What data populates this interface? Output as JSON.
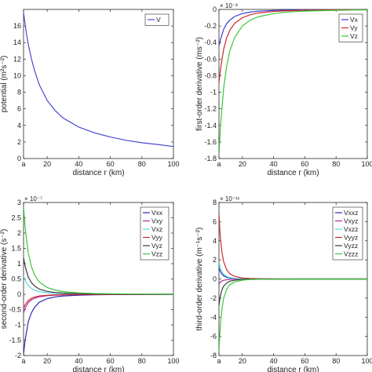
{
  "chart_data": [
    {
      "type": "line",
      "panel": "top-left",
      "title": "",
      "xlabel": "distance r (km)",
      "ylabel": "potential (m²s⁻²)",
      "exponent_label": "",
      "xlim": [
        5,
        100
      ],
      "ylim": [
        0,
        18
      ],
      "xticks": [
        5,
        20,
        40,
        60,
        80,
        100
      ],
      "xtick_labels": [
        "a",
        "20",
        "40",
        "60",
        "80",
        "100"
      ],
      "yticks": [
        0,
        2,
        4,
        6,
        8,
        10,
        12,
        14,
        16
      ],
      "ytick_labels": [
        "0",
        "2",
        "4",
        "6",
        "8",
        "10",
        "12",
        "14",
        "16"
      ],
      "grid": false,
      "legend": "top-right",
      "series": [
        {
          "name": "V",
          "color": "#4a4ad0",
          "x": [
            5,
            6,
            7,
            8,
            10,
            12,
            15,
            20,
            25,
            30,
            40,
            50,
            60,
            70,
            80,
            90,
            100
          ],
          "y": [
            17.6,
            16.2,
            14.9,
            13.8,
            12.0,
            10.6,
            8.9,
            7.0,
            5.8,
            4.9,
            3.8,
            3.1,
            2.6,
            2.2,
            1.9,
            1.7,
            1.45
          ]
        }
      ]
    },
    {
      "type": "line",
      "panel": "top-right",
      "title": "",
      "xlabel": "distance r (km)",
      "ylabel": "first-order derivative (ms⁻²)",
      "exponent_label": "× 10⁻³",
      "xlim": [
        5,
        100
      ],
      "ylim": [
        -1.8,
        0
      ],
      "xticks": [
        5,
        20,
        40,
        60,
        80,
        100
      ],
      "xtick_labels": [
        "a",
        "20",
        "40",
        "60",
        "80",
        "100"
      ],
      "yticks": [
        -1.8,
        -1.6,
        -1.4,
        -1.2,
        -1.0,
        -0.8,
        -0.6,
        -0.4,
        -0.2,
        0
      ],
      "ytick_labels": [
        "-1.8",
        "-1.6",
        "-1.4",
        "-1.2",
        "-1",
        "-0.8",
        "-0.6",
        "-0.4",
        "-0.2",
        "0"
      ],
      "grid": false,
      "legend": "top-right",
      "series": [
        {
          "name": "Vx",
          "color": "#3a3ad0",
          "x": [
            5,
            6,
            8,
            10,
            12,
            15,
            20,
            25,
            30,
            40,
            50,
            60,
            70,
            80,
            90,
            100
          ],
          "y": [
            -0.44,
            -0.36,
            -0.24,
            -0.17,
            -0.13,
            -0.085,
            -0.05,
            -0.032,
            -0.022,
            -0.012,
            -0.008,
            -0.005,
            -0.004,
            -0.003,
            -0.002,
            -0.0015
          ]
        },
        {
          "name": "Vy",
          "color": "#d02a2a",
          "x": [
            5,
            6,
            8,
            10,
            12,
            15,
            20,
            25,
            30,
            40,
            50,
            60,
            70,
            80,
            90,
            100
          ],
          "y": [
            -0.88,
            -0.72,
            -0.48,
            -0.34,
            -0.25,
            -0.17,
            -0.1,
            -0.064,
            -0.044,
            -0.024,
            -0.015,
            -0.01,
            -0.008,
            -0.006,
            -0.004,
            -0.003
          ]
        },
        {
          "name": "Vz",
          "color": "#38c838",
          "x": [
            5,
            6,
            8,
            10,
            12,
            15,
            20,
            25,
            30,
            40,
            50,
            60,
            70,
            80,
            90,
            100
          ],
          "y": [
            -1.75,
            -1.4,
            -0.95,
            -0.68,
            -0.5,
            -0.34,
            -0.2,
            -0.13,
            -0.09,
            -0.05,
            -0.03,
            -0.02,
            -0.015,
            -0.011,
            -0.008,
            -0.006
          ]
        }
      ]
    },
    {
      "type": "line",
      "panel": "bottom-left",
      "title": "",
      "xlabel": "distance r (km)",
      "ylabel": "second-order derivative (s⁻²)",
      "exponent_label": "× 10⁻⁷",
      "xlim": [
        5,
        100
      ],
      "ylim": [
        -2,
        3
      ],
      "xticks": [
        5,
        20,
        40,
        60,
        80,
        100
      ],
      "xtick_labels": [
        "a",
        "20",
        "40",
        "60",
        "80",
        "100"
      ],
      "yticks": [
        -2,
        -1.5,
        -1,
        -0.5,
        0,
        0.5,
        1,
        1.5,
        2,
        2.5,
        3
      ],
      "ytick_labels": [
        "-2",
        "-1.5",
        "-1",
        "-0.5",
        "0",
        "0.5",
        "1",
        "1.5",
        "2",
        "2.5",
        "3"
      ],
      "grid": false,
      "legend": "top-right",
      "series": [
        {
          "name": "Vxx",
          "color": "#2a2ab0",
          "x": [
            5,
            6,
            8,
            10,
            12,
            15,
            20,
            25,
            30,
            40,
            50,
            60,
            80,
            100
          ],
          "y": [
            -1.95,
            -1.5,
            -0.9,
            -0.6,
            -0.42,
            -0.26,
            -0.14,
            -0.085,
            -0.055,
            -0.028,
            -0.016,
            -0.01,
            -0.005,
            -0.003
          ]
        },
        {
          "name": "Vxy",
          "color": "#b02aa8",
          "x": [
            5,
            6,
            8,
            10,
            12,
            15,
            20,
            25,
            30,
            40,
            50,
            60,
            80,
            100
          ],
          "y": [
            -0.6,
            -0.45,
            -0.27,
            -0.18,
            -0.13,
            -0.08,
            -0.045,
            -0.028,
            -0.018,
            -0.009,
            -0.005,
            -0.003,
            -0.002,
            -0.001
          ]
        },
        {
          "name": "Vxz",
          "color": "#5ad8e8",
          "x": [
            5,
            6,
            8,
            10,
            12,
            15,
            20,
            25,
            30,
            40,
            50,
            60,
            80,
            100
          ],
          "y": [
            0.6,
            0.46,
            0.28,
            0.19,
            0.13,
            0.085,
            0.048,
            0.03,
            0.02,
            0.01,
            0.006,
            0.004,
            0.002,
            0.001
          ]
        },
        {
          "name": "Vyy",
          "color": "#d02a2a",
          "x": [
            5,
            6,
            8,
            10,
            12,
            15,
            20,
            25,
            30,
            40,
            50,
            60,
            80,
            100
          ],
          "y": [
            -0.45,
            -0.34,
            -0.2,
            -0.13,
            -0.09,
            -0.055,
            -0.03,
            -0.018,
            -0.012,
            -0.006,
            -0.003,
            -0.002,
            -0.001,
            -0.0005
          ]
        },
        {
          "name": "Vyz",
          "color": "#3a3a3a",
          "x": [
            5,
            6,
            8,
            10,
            12,
            15,
            20,
            25,
            30,
            40,
            50,
            60,
            80,
            100
          ],
          "y": [
            1.2,
            0.92,
            0.56,
            0.38,
            0.27,
            0.17,
            0.095,
            0.06,
            0.04,
            0.02,
            0.012,
            0.008,
            0.004,
            0.002
          ]
        },
        {
          "name": "Vzz",
          "color": "#38c838",
          "x": [
            5,
            6,
            8,
            10,
            12,
            15,
            20,
            25,
            30,
            40,
            50,
            60,
            80,
            100
          ],
          "y": [
            2.85,
            2.2,
            1.35,
            0.9,
            0.63,
            0.4,
            0.22,
            0.14,
            0.09,
            0.045,
            0.026,
            0.017,
            0.008,
            0.004
          ]
        }
      ]
    },
    {
      "type": "line",
      "panel": "bottom-right",
      "title": "",
      "xlabel": "distance r (km)",
      "ylabel": "third-order derivative (m⁻¹s⁻²)",
      "exponent_label": "× 10⁻¹¹",
      "xlim": [
        5,
        100
      ],
      "ylim": [
        -8,
        8
      ],
      "xticks": [
        5,
        20,
        40,
        60,
        80,
        100
      ],
      "xtick_labels": [
        "a",
        "20",
        "40",
        "60",
        "80",
        "100"
      ],
      "yticks": [
        -8,
        -6,
        -4,
        -2,
        0,
        2,
        4,
        6,
        8
      ],
      "ytick_labels": [
        "-8",
        "-6",
        "-4",
        "-2",
        "0",
        "2",
        "4",
        "6",
        "8"
      ],
      "grid": false,
      "legend": "top-right",
      "series": [
        {
          "name": "Vxxz",
          "color": "#2a2ab0",
          "x": [
            5,
            5.5,
            6,
            7,
            8,
            10,
            12,
            15,
            20,
            25,
            30,
            40,
            60,
            100
          ],
          "y": [
            1.2,
            0.95,
            0.75,
            0.5,
            0.34,
            0.18,
            0.1,
            0.05,
            0.02,
            0.01,
            0.005,
            0.002,
            0.0005,
            0.0001
          ]
        },
        {
          "name": "Vxyz",
          "color": "#b02aa8",
          "x": [
            5,
            5.5,
            6,
            7,
            8,
            10,
            12,
            15,
            20,
            25,
            30,
            40,
            60,
            100
          ],
          "y": [
            -0.5,
            -0.39,
            -0.31,
            -0.2,
            -0.14,
            -0.07,
            -0.04,
            -0.02,
            -0.008,
            -0.004,
            -0.002,
            -0.001,
            -0.0002,
            0
          ]
        },
        {
          "name": "Vxzz",
          "color": "#5ad8e8",
          "x": [
            5,
            5.5,
            6,
            7,
            8,
            10,
            12,
            15,
            20,
            25,
            30,
            40,
            60,
            100
          ],
          "y": [
            1.8,
            1.4,
            1.1,
            0.72,
            0.5,
            0.26,
            0.15,
            0.075,
            0.03,
            0.015,
            0.008,
            0.003,
            0.001,
            0.0002
          ]
        },
        {
          "name": "Vyyz",
          "color": "#d02a2a",
          "x": [
            5,
            5.5,
            6,
            7,
            8,
            10,
            12,
            15,
            20,
            25,
            30,
            40,
            60,
            100
          ],
          "y": [
            6.8,
            5.3,
            4.1,
            2.7,
            1.8,
            0.95,
            0.55,
            0.28,
            0.11,
            0.055,
            0.03,
            0.012,
            0.003,
            0.0005
          ]
        },
        {
          "name": "Vyzz",
          "color": "#3a3a3a",
          "x": [
            5,
            5.5,
            6,
            7,
            8,
            10,
            12,
            15,
            20,
            25,
            30,
            40,
            60,
            100
          ],
          "y": [
            -2.8,
            -2.2,
            -1.7,
            -1.1,
            -0.75,
            -0.4,
            -0.23,
            -0.12,
            -0.045,
            -0.022,
            -0.012,
            -0.005,
            -0.0012,
            -0.0002
          ]
        },
        {
          "name": "Vzzz",
          "color": "#38c838",
          "x": [
            5,
            5.5,
            6,
            7,
            8,
            10,
            12,
            15,
            20,
            25,
            30,
            40,
            60,
            100
          ],
          "y": [
            -7.6,
            -5.9,
            -4.6,
            -3.0,
            -2.0,
            -1.05,
            -0.6,
            -0.3,
            -0.12,
            -0.06,
            -0.032,
            -0.013,
            -0.003,
            -0.0005
          ]
        }
      ]
    }
  ]
}
